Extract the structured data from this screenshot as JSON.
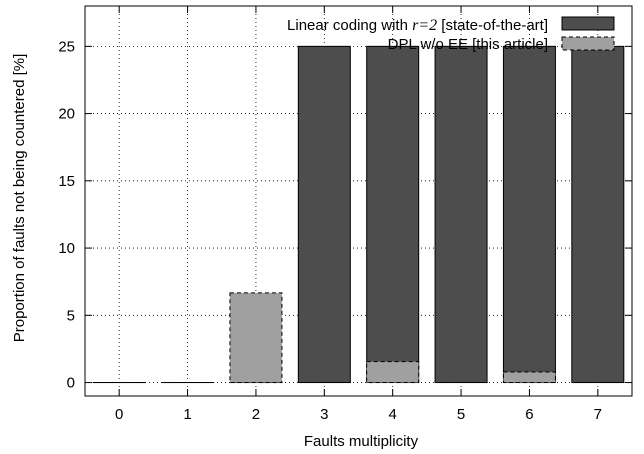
{
  "chart_data": {
    "type": "bar",
    "xlabel": "Faults multiplicity",
    "ylabel": "Proportion of faults not being countered [%]",
    "categories": [
      "0",
      "1",
      "2",
      "3",
      "4",
      "5",
      "6",
      "7"
    ],
    "ylim": [
      -1,
      28
    ],
    "yticks": [
      0,
      5,
      10,
      15,
      20,
      25
    ],
    "grid": true,
    "legend_position": "top-right",
    "series": [
      {
        "name": "Linear coding with r=2 [state-of-the-art]",
        "name_prefix": "Linear coding with ",
        "name_italic": "r=2",
        "name_suffix": " [state-of-the-art]",
        "color": "#4d4d4d",
        "stroke": "#000000",
        "dashed": false,
        "values": [
          0,
          0,
          0,
          25,
          25,
          25,
          25,
          25
        ]
      },
      {
        "name": "DPL w/o EE [this article]",
        "color": "#a0a0a0",
        "stroke": "#000000",
        "dashed": true,
        "values": [
          0,
          0,
          6.67,
          0,
          1.56,
          0,
          0.78,
          0
        ]
      }
    ]
  }
}
